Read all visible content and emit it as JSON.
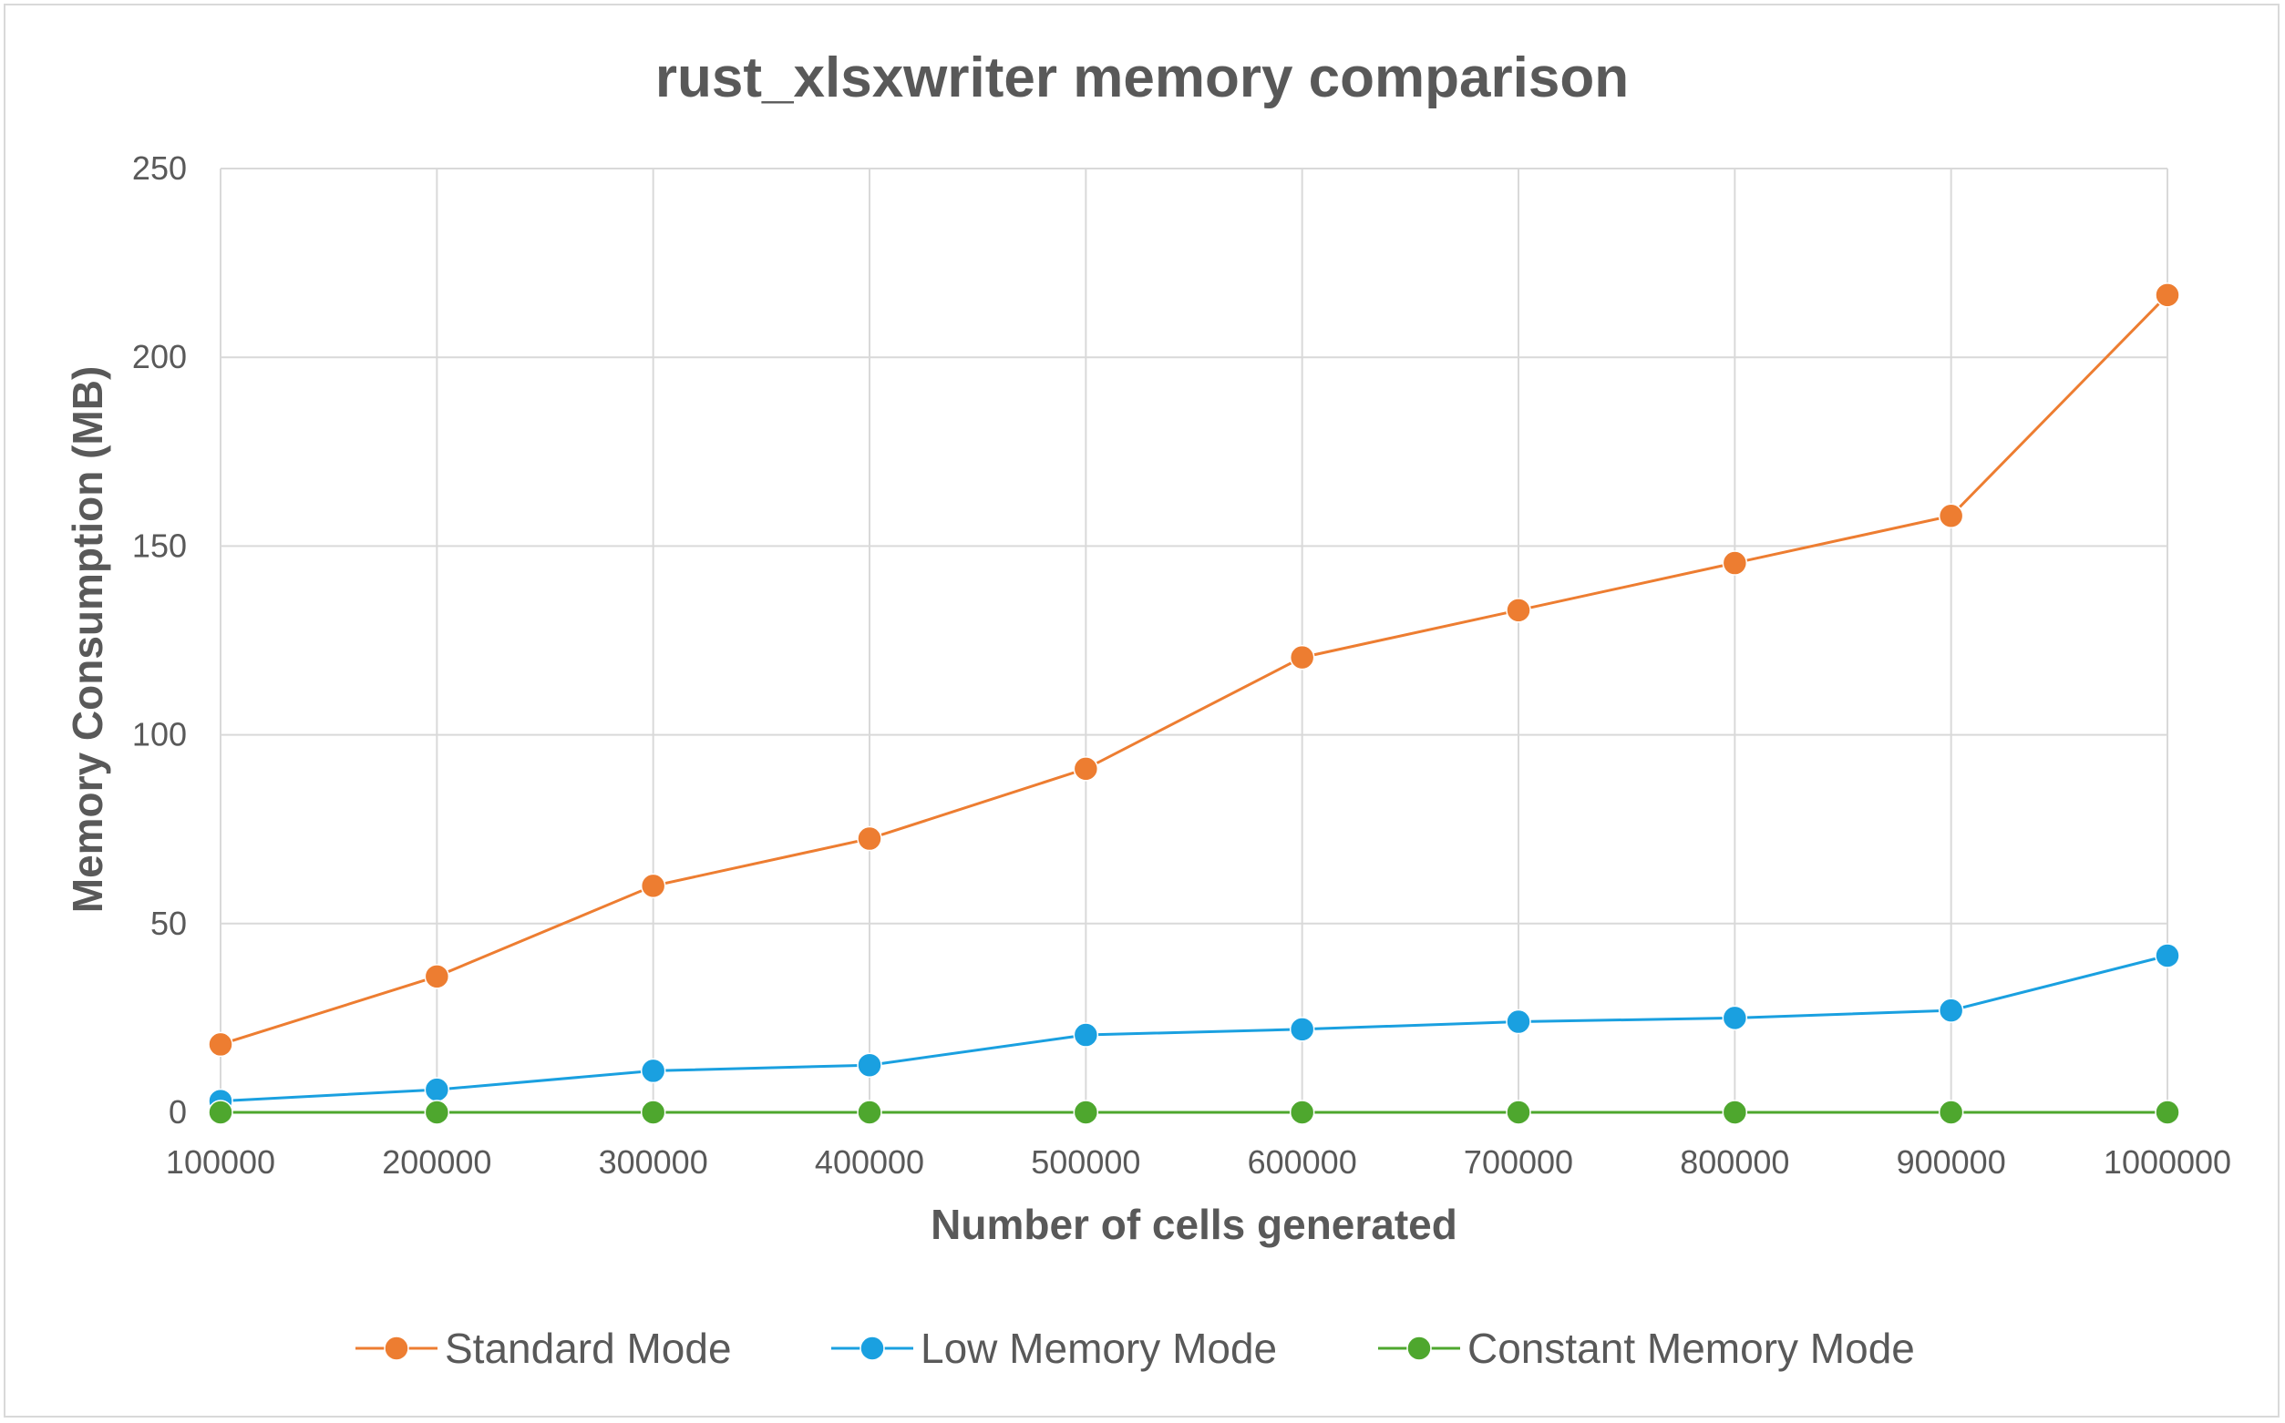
{
  "chart_data": {
    "type": "line",
    "title": "rust_xlsxwriter memory comparison",
    "xlabel": "Number of cells generated",
    "ylabel": "Memory Consumption (MB)",
    "categories": [
      "100000",
      "200000",
      "300000",
      "400000",
      "500000",
      "600000",
      "700000",
      "800000",
      "900000",
      "1000000"
    ],
    "ylim": [
      0,
      250
    ],
    "yticks": [
      "0",
      "50",
      "100",
      "150",
      "200",
      "250"
    ],
    "grid": true,
    "legend_position": "bottom",
    "series": [
      {
        "name": "Standard Mode",
        "color": "#ED7D31",
        "values": [
          18,
          36,
          60,
          72.5,
          91,
          120.5,
          133,
          145.5,
          158,
          216.5
        ]
      },
      {
        "name": "Low Memory Mode",
        "color": "#1AA0E0",
        "values": [
          3,
          6,
          11,
          12.5,
          20.5,
          22,
          24,
          25,
          27,
          41.5
        ]
      },
      {
        "name": "Constant Memory Mode",
        "color": "#4EA72E",
        "values": [
          0,
          0,
          0,
          0,
          0,
          0,
          0,
          0,
          0,
          0
        ]
      }
    ]
  }
}
